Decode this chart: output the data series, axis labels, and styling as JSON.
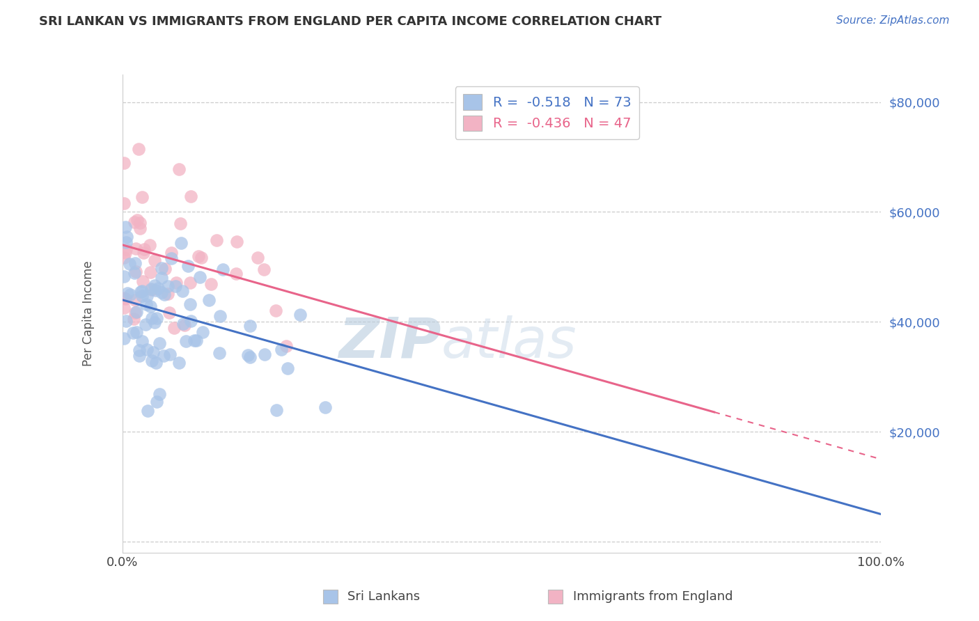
{
  "title": "SRI LANKAN VS IMMIGRANTS FROM ENGLAND PER CAPITA INCOME CORRELATION CHART",
  "source": "Source: ZipAtlas.com",
  "ylabel": "Per Capita Income",
  "xlim": [
    0,
    100
  ],
  "ylim": [
    -2000,
    85000
  ],
  "yticks": [
    0,
    20000,
    40000,
    60000,
    80000
  ],
  "ytick_labels": [
    "",
    "$20,000",
    "$40,000",
    "$60,000",
    "$80,000"
  ],
  "xtick_labels": [
    "0.0%",
    "100.0%"
  ],
  "blue_R": -0.518,
  "blue_N": 73,
  "pink_R": -0.436,
  "pink_N": 47,
  "blue_color": "#A8C4E8",
  "pink_color": "#F2B3C4",
  "blue_line_color": "#4472C4",
  "pink_line_color": "#E8648A",
  "watermark": "ZIPatlas",
  "watermark_color": "#C8D8EC",
  "legend_label_blue": "Sri Lankans",
  "legend_label_pink": "Immigrants from England",
  "blue_line_y0": 44000,
  "blue_line_y100": 5000,
  "pink_line_y0": 54000,
  "pink_line_y100": 15000,
  "pink_solid_end": 78,
  "background": "#FFFFFF"
}
